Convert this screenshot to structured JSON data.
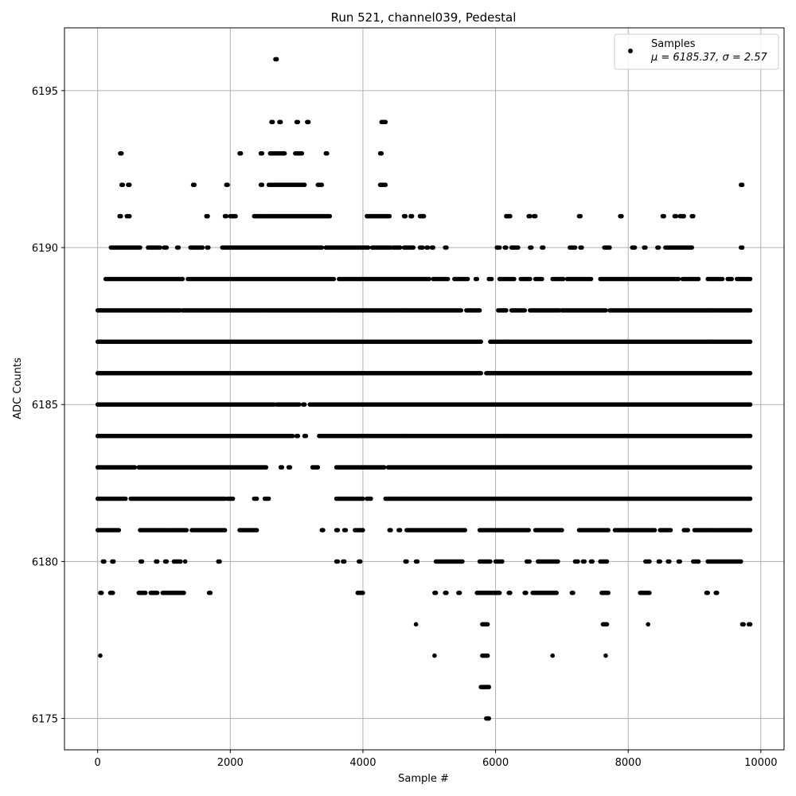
{
  "chart_data": {
    "type": "scatter",
    "title": "Run 521, channel039, Pedestal",
    "xlabel": "Sample #",
    "ylabel": "ADC Counts",
    "xlim": [
      -500,
      10350
    ],
    "ylim": [
      6174,
      6197
    ],
    "xticks": [
      0,
      2000,
      4000,
      6000,
      8000,
      10000
    ],
    "xtick_labels": [
      "0",
      "2000",
      "4000",
      "6000",
      "8000",
      "10000"
    ],
    "yticks": [
      6175,
      6180,
      6185,
      6190,
      6195
    ],
    "ytick_labels": [
      "6175",
      "6180",
      "6185",
      "6190",
      "6195"
    ],
    "grid": true,
    "legend_position": "top-right",
    "colors": {
      "points": "#000000",
      "grid": "#b0b0b0"
    },
    "legend": {
      "label": "Samples",
      "stats": "μ = 6185.37, σ = 2.57"
    },
    "mean": 6185.37,
    "sigma": 2.57,
    "series": [
      {
        "name": "Samples",
        "bands": [
          {
            "y": 6175,
            "ranges": [
              [
                5860,
                5900
              ]
            ]
          },
          {
            "y": 6176,
            "ranges": [
              [
                5780,
                5900
              ]
            ]
          },
          {
            "y": 6177,
            "ranges": [
              [
                40,
                50
              ],
              [
                5080,
                5090
              ],
              [
                5800,
                5880
              ],
              [
                6860,
                6870
              ],
              [
                7660,
                7670
              ]
            ]
          },
          {
            "y": 6178,
            "ranges": [
              [
                4800,
                4810
              ],
              [
                5800,
                5880
              ],
              [
                7620,
                7680
              ],
              [
                8300,
                8310
              ],
              [
                9720,
                9740
              ],
              [
                9820,
                9840
              ]
            ]
          },
          {
            "y": 6179,
            "ranges": [
              [
                40,
                60
              ],
              [
                190,
                230
              ],
              [
                620,
                720
              ],
              [
                800,
                900
              ],
              [
                980,
                1300
              ],
              [
                1680,
                1700
              ],
              [
                3920,
                4000
              ],
              [
                5080,
                5100
              ],
              [
                5240,
                5260
              ],
              [
                5440,
                5460
              ],
              [
                5720,
                6060
              ],
              [
                6200,
                6220
              ],
              [
                6440,
                6460
              ],
              [
                6560,
                6920
              ],
              [
                7150,
                7170
              ],
              [
                7600,
                7700
              ],
              [
                8180,
                8320
              ],
              [
                9180,
                9200
              ],
              [
                9320,
                9340
              ]
            ]
          },
          {
            "y": 6180,
            "ranges": [
              [
                80,
                100
              ],
              [
                220,
                240
              ],
              [
                650,
                670
              ],
              [
                880,
                900
              ],
              [
                1020,
                1040
              ],
              [
                1150,
                1250
              ],
              [
                1320,
                1330
              ],
              [
                1820,
                1840
              ],
              [
                3600,
                3620
              ],
              [
                3700,
                3720
              ],
              [
                3940,
                3960
              ],
              [
                4640,
                4660
              ],
              [
                4800,
                4820
              ],
              [
                5100,
                5500
              ],
              [
                5760,
                5920
              ],
              [
                6000,
                6100
              ],
              [
                6470,
                6520
              ],
              [
                6640,
                6940
              ],
              [
                7200,
                7240
              ],
              [
                7320,
                7340
              ],
              [
                7440,
                7460
              ],
              [
                7580,
                7680
              ],
              [
                8260,
                8320
              ],
              [
                8460,
                8480
              ],
              [
                8600,
                8620
              ],
              [
                8760,
                8780
              ],
              [
                8980,
                9060
              ],
              [
                9200,
                9700
              ]
            ]
          },
          {
            "y": 6181,
            "ranges": [
              [
                0,
                320
              ],
              [
                640,
                1340
              ],
              [
                1420,
                1920
              ],
              [
                2140,
                2400
              ],
              [
                3380,
                3400
              ],
              [
                3600,
                3620
              ],
              [
                3720,
                3740
              ],
              [
                3880,
                4000
              ],
              [
                4400,
                4420
              ],
              [
                4540,
                4560
              ],
              [
                4660,
                5540
              ],
              [
                5760,
                6500
              ],
              [
                6600,
                7000
              ],
              [
                7260,
                7700
              ],
              [
                7800,
                8400
              ],
              [
                8480,
                8640
              ],
              [
                8840,
                8900
              ],
              [
                9000,
                9840
              ]
            ]
          },
          {
            "y": 6182,
            "ranges": [
              [
                0,
                420
              ],
              [
                500,
                1920
              ],
              [
                1960,
                2040
              ],
              [
                2360,
                2400
              ],
              [
                2520,
                2580
              ],
              [
                3600,
                4000
              ],
              [
                4060,
                4120
              ],
              [
                4340,
                9840
              ]
            ]
          },
          {
            "y": 6183,
            "ranges": [
              [
                0,
                560
              ],
              [
                620,
                2540
              ],
              [
                2760,
                2780
              ],
              [
                2880,
                2900
              ],
              [
                3240,
                3320
              ],
              [
                3600,
                4320
              ],
              [
                4380,
                9840
              ]
            ]
          },
          {
            "y": 6184,
            "ranges": [
              [
                0,
                2940
              ],
              [
                3000,
                3020
              ],
              [
                3120,
                3140
              ],
              [
                3340,
                9840
              ]
            ]
          },
          {
            "y": 6185,
            "ranges": [
              [
                0,
                2660
              ],
              [
                2700,
                3040
              ],
              [
                3100,
                3120
              ],
              [
                3200,
                9840
              ]
            ]
          },
          {
            "y": 6186,
            "ranges": [
              [
                0,
                5780
              ],
              [
                5860,
                9840
              ]
            ]
          },
          {
            "y": 6187,
            "ranges": [
              [
                0,
                5780
              ],
              [
                5920,
                9840
              ]
            ]
          },
          {
            "y": 6188,
            "ranges": [
              [
                0,
                1240
              ],
              [
                1280,
                5480
              ],
              [
                5560,
                5760
              ],
              [
                6040,
                6160
              ],
              [
                6240,
                6440
              ],
              [
                6520,
                6960
              ],
              [
                7000,
                7660
              ],
              [
                7720,
                9840
              ]
            ]
          },
          {
            "y": 6189,
            "ranges": [
              [
                120,
                880
              ],
              [
                900,
                1280
              ],
              [
                1360,
                3560
              ],
              [
                3640,
                5000
              ],
              [
                5060,
                5280
              ],
              [
                5380,
                5480
              ],
              [
                5500,
                5580
              ],
              [
                5700,
                5720
              ],
              [
                5900,
                5940
              ],
              [
                6060,
                6280
              ],
              [
                6380,
                6520
              ],
              [
                6600,
                6700
              ],
              [
                6860,
                7020
              ],
              [
                7080,
                7440
              ],
              [
                7580,
                8760
              ],
              [
                8820,
                9060
              ],
              [
                9200,
                9420
              ],
              [
                9500,
                9560
              ],
              [
                9640,
                9840
              ]
            ]
          },
          {
            "y": 6190,
            "ranges": [
              [
                200,
                640
              ],
              [
                760,
                940
              ],
              [
                1000,
                1040
              ],
              [
                1200,
                1220
              ],
              [
                1400,
                1580
              ],
              [
                1650,
                1670
              ],
              [
                1880,
                3380
              ],
              [
                3440,
                4080
              ],
              [
                4140,
                4420
              ],
              [
                4460,
                4560
              ],
              [
                4620,
                4760
              ],
              [
                4860,
                4900
              ],
              [
                4960,
                4980
              ],
              [
                5040,
                5060
              ],
              [
                5240,
                5260
              ],
              [
                6020,
                6060
              ],
              [
                6140,
                6160
              ],
              [
                6240,
                6340
              ],
              [
                6520,
                6540
              ],
              [
                6700,
                6720
              ],
              [
                7120,
                7200
              ],
              [
                7280,
                7300
              ],
              [
                7640,
                7720
              ],
              [
                8060,
                8100
              ],
              [
                8240,
                8260
              ],
              [
                8440,
                8460
              ],
              [
                8560,
                8960
              ],
              [
                9700,
                9720
              ]
            ]
          },
          {
            "y": 6191,
            "ranges": [
              [
                330,
                350
              ],
              [
                440,
                480
              ],
              [
                1640,
                1660
              ],
              [
                1920,
                1940
              ],
              [
                2000,
                2080
              ],
              [
                2360,
                3500
              ],
              [
                4060,
                4400
              ],
              [
                4620,
                4640
              ],
              [
                4720,
                4740
              ],
              [
                4860,
                4920
              ],
              [
                6160,
                6220
              ],
              [
                6500,
                6520
              ],
              [
                6580,
                6600
              ],
              [
                7260,
                7280
              ],
              [
                7880,
                7900
              ],
              [
                8520,
                8540
              ],
              [
                8700,
                8720
              ],
              [
                8780,
                8840
              ],
              [
                8960,
                8980
              ]
            ]
          },
          {
            "y": 6192,
            "ranges": [
              [
                360,
                380
              ],
              [
                460,
                480
              ],
              [
                1440,
                1460
              ],
              [
                1940,
                1960
              ],
              [
                2460,
                2480
              ],
              [
                2580,
                3120
              ],
              [
                3320,
                3380
              ],
              [
                4260,
                4340
              ],
              [
                9700,
                9720
              ]
            ]
          },
          {
            "y": 6193,
            "ranges": [
              [
                340,
                360
              ],
              [
                2140,
                2160
              ],
              [
                2460,
                2480
              ],
              [
                2600,
                2820
              ],
              [
                2980,
                3080
              ],
              [
                3440,
                3460
              ],
              [
                4260,
                4280
              ]
            ]
          },
          {
            "y": 6194,
            "ranges": [
              [
                2620,
                2640
              ],
              [
                2740,
                2760
              ],
              [
                3000,
                3020
              ],
              [
                3160,
                3180
              ],
              [
                4280,
                4340
              ]
            ]
          },
          {
            "y": 6196,
            "ranges": [
              [
                2680,
                2700
              ]
            ]
          }
        ]
      }
    ]
  }
}
